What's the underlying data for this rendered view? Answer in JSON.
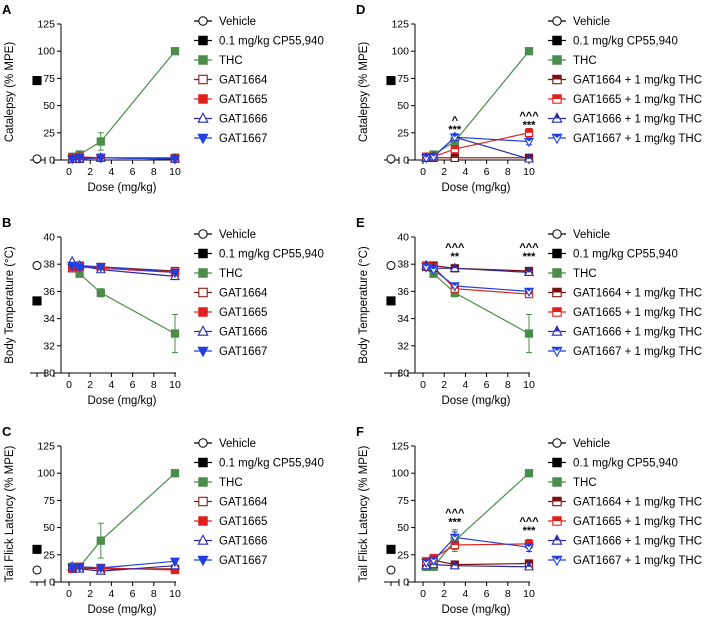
{
  "figure": {
    "styles": {
      "Vehicle": {
        "color": "#000000",
        "marker": "circle",
        "fill": "#ffffff"
      },
      "CP": {
        "color": "#000000",
        "marker": "square",
        "fill": "#000000"
      },
      "THC": {
        "color": "#4a8d4a",
        "marker": "square",
        "fill": "#4a8d4a"
      },
      "GAT1664": {
        "color": "#8b1a1a",
        "marker": "square",
        "fill": "#ffffff"
      },
      "GAT1665": {
        "color": "#e0201c",
        "marker": "square",
        "fill": "#e0201c"
      },
      "GAT1666": {
        "color": "#2a2aa8",
        "marker": "triangle-up",
        "fill": "#ffffff"
      },
      "GAT1667": {
        "color": "#1f3fe0",
        "marker": "triangle-down",
        "fill": "#1f3fe0"
      },
      "GAT1664+THC": {
        "color": "#7a1010",
        "marker": "square",
        "fill": "half"
      },
      "GAT1665+THC": {
        "color": "#e0201c",
        "marker": "square",
        "fill": "half"
      },
      "GAT1666+THC": {
        "color": "#2a2aa8",
        "marker": "triangle-up",
        "fill": "half"
      },
      "GAT1667+THC": {
        "color": "#1f3fe0",
        "marker": "triangle-down",
        "fill": "half"
      }
    }
  },
  "chart_data": [
    {
      "panel": "A",
      "type": "line",
      "xlabel": "Dose (mg/kg)",
      "ylabel": "Catalepsy (% MPE)",
      "ylim": [
        0,
        125
      ],
      "yticks": [
        0,
        25,
        50,
        75,
        100,
        125
      ],
      "xlim": [
        0,
        10
      ],
      "xticks": [
        0,
        2,
        4,
        6,
        8,
        10
      ],
      "controls": [
        {
          "key": "Vehicle",
          "value": 1
        },
        {
          "key": "CP",
          "value": 73
        }
      ],
      "series": [
        {
          "key": "THC",
          "x": [
            0.3,
            1,
            3,
            10
          ],
          "y": [
            3,
            5,
            17,
            100
          ],
          "err": [
            2,
            2,
            8,
            0
          ]
        },
        {
          "key": "GAT1664",
          "x": [
            0.3,
            1,
            3,
            10
          ],
          "y": [
            1,
            1,
            2,
            2
          ],
          "err": [
            0,
            0,
            0,
            0
          ]
        },
        {
          "key": "GAT1665",
          "x": [
            0.3,
            1,
            3,
            10
          ],
          "y": [
            2,
            3,
            2,
            1
          ],
          "err": [
            0,
            0,
            0,
            0
          ]
        },
        {
          "key": "GAT1666",
          "x": [
            0.3,
            1,
            3,
            10
          ],
          "y": [
            1,
            1,
            2,
            1
          ],
          "err": [
            0,
            0,
            0,
            0
          ]
        },
        {
          "key": "GAT1667",
          "x": [
            0.3,
            1,
            3,
            10
          ],
          "y": [
            1,
            2,
            2,
            1
          ],
          "err": [
            0,
            0,
            0,
            0
          ]
        }
      ],
      "legend": [
        {
          "key": "Vehicle",
          "label": "Vehicle"
        },
        {
          "key": "CP",
          "label": "0.1 mg/kg CP55,940"
        },
        {
          "key": "THC",
          "label": "THC"
        },
        {
          "key": "GAT1664",
          "label": "GAT1664"
        },
        {
          "key": "GAT1665",
          "label": "GAT1665"
        },
        {
          "key": "GAT1666",
          "label": "GAT1666"
        },
        {
          "key": "GAT1667",
          "label": "GAT1667"
        }
      ],
      "annotations": []
    },
    {
      "panel": "B",
      "type": "line",
      "xlabel": "Dose (mg/kg)",
      "ylabel": "Body Temperature (°C)",
      "ylim": [
        30,
        40
      ],
      "yticks": [
        30,
        32,
        34,
        36,
        38,
        40
      ],
      "xlim": [
        0,
        10
      ],
      "xticks": [
        0,
        2,
        4,
        6,
        8,
        10
      ],
      "controls": [
        {
          "key": "Vehicle",
          "value": 37.9
        },
        {
          "key": "CP",
          "value": 35.3
        }
      ],
      "series": [
        {
          "key": "THC",
          "x": [
            0.3,
            1,
            3,
            10
          ],
          "y": [
            37.8,
            37.3,
            35.9,
            32.9
          ],
          "err": [
            0.2,
            0.2,
            0.3,
            1.4
          ]
        },
        {
          "key": "GAT1664",
          "x": [
            0.3,
            1,
            3,
            10
          ],
          "y": [
            37.7,
            37.9,
            37.8,
            37.5
          ],
          "err": [
            0,
            0,
            0,
            0
          ]
        },
        {
          "key": "GAT1665",
          "x": [
            0.3,
            1,
            3,
            10
          ],
          "y": [
            37.8,
            37.8,
            37.7,
            37.4
          ],
          "err": [
            0,
            0,
            0,
            0
          ]
        },
        {
          "key": "GAT1666",
          "x": [
            0.3,
            1,
            3,
            10
          ],
          "y": [
            38.2,
            37.9,
            37.6,
            37.1
          ],
          "err": [
            0,
            0,
            0,
            0
          ]
        },
        {
          "key": "GAT1667",
          "x": [
            0.3,
            1,
            3,
            10
          ],
          "y": [
            37.9,
            37.8,
            37.8,
            37.4
          ],
          "err": [
            0,
            0,
            0,
            0
          ]
        }
      ],
      "legend": [
        {
          "key": "Vehicle",
          "label": "Vehicle"
        },
        {
          "key": "CP",
          "label": "0.1 mg/kg CP55,940"
        },
        {
          "key": "THC",
          "label": "THC"
        },
        {
          "key": "GAT1664",
          "label": "GAT1664"
        },
        {
          "key": "GAT1665",
          "label": "GAT1665"
        },
        {
          "key": "GAT1666",
          "label": "GAT1666"
        },
        {
          "key": "GAT1667",
          "label": "GAT1667"
        }
      ],
      "annotations": []
    },
    {
      "panel": "C",
      "type": "line",
      "xlabel": "Dose (mg/kg)",
      "ylabel": "Tail Flick Latency (% MPE)",
      "ylim": [
        0,
        125
      ],
      "yticks": [
        0,
        25,
        50,
        75,
        100,
        125
      ],
      "xlim": [
        0,
        10
      ],
      "xticks": [
        0,
        2,
        4,
        6,
        8,
        10
      ],
      "controls": [
        {
          "key": "Vehicle",
          "value": 11
        },
        {
          "key": "CP",
          "value": 30
        }
      ],
      "series": [
        {
          "key": "THC",
          "x": [
            0.3,
            1,
            3,
            10
          ],
          "y": [
            14,
            14,
            38,
            100
          ],
          "err": [
            2,
            2,
            16,
            0
          ]
        },
        {
          "key": "GAT1664",
          "x": [
            0.3,
            1,
            3,
            10
          ],
          "y": [
            13,
            13,
            12,
            12
          ],
          "err": [
            0,
            0,
            0,
            0
          ]
        },
        {
          "key": "GAT1665",
          "x": [
            0.3,
            1,
            3,
            10
          ],
          "y": [
            12,
            14,
            13,
            11
          ],
          "err": [
            0,
            0,
            0,
            0
          ]
        },
        {
          "key": "GAT1666",
          "x": [
            0.3,
            1,
            3,
            10
          ],
          "y": [
            14,
            12,
            10,
            15
          ],
          "err": [
            0,
            0,
            0,
            0
          ]
        },
        {
          "key": "GAT1667",
          "x": [
            0.3,
            1,
            3,
            10
          ],
          "y": [
            13,
            14,
            13,
            19
          ],
          "err": [
            0,
            0,
            0,
            0
          ]
        }
      ],
      "legend": [
        {
          "key": "Vehicle",
          "label": "Vehicle"
        },
        {
          "key": "CP",
          "label": "0.1 mg/kg CP55,940"
        },
        {
          "key": "THC",
          "label": "THC"
        },
        {
          "key": "GAT1664",
          "label": "GAT1664"
        },
        {
          "key": "GAT1665",
          "label": "GAT1665"
        },
        {
          "key": "GAT1666",
          "label": "GAT1666"
        },
        {
          "key": "GAT1667",
          "label": "GAT1667"
        }
      ],
      "annotations": []
    },
    {
      "panel": "D",
      "type": "line",
      "xlabel": "Dose (mg/kg)",
      "ylabel": "Catalepsy (% MPE)",
      "ylim": [
        0,
        125
      ],
      "yticks": [
        0,
        25,
        50,
        75,
        100,
        125
      ],
      "xlim": [
        0,
        10
      ],
      "xticks": [
        0,
        2,
        4,
        6,
        8,
        10
      ],
      "controls": [
        {
          "key": "Vehicle",
          "value": 1
        },
        {
          "key": "CP",
          "value": 73
        }
      ],
      "series": [
        {
          "key": "THC",
          "x": [
            0.3,
            1,
            3,
            10
          ],
          "y": [
            3,
            5,
            17,
            100
          ],
          "err": [
            2,
            2,
            6,
            0
          ]
        },
        {
          "key": "GAT1664+THC",
          "x": [
            0.3,
            1,
            3,
            10
          ],
          "y": [
            2,
            2,
            2,
            2
          ],
          "err": [
            0,
            0,
            0,
            0
          ]
        },
        {
          "key": "GAT1665+THC",
          "x": [
            0.3,
            1,
            3,
            10
          ],
          "y": [
            3,
            3,
            10,
            25
          ],
          "err": [
            0,
            0,
            4,
            4
          ]
        },
        {
          "key": "GAT1666+THC",
          "x": [
            0.3,
            1,
            3,
            10
          ],
          "y": [
            2,
            3,
            21,
            1
          ],
          "err": [
            0,
            0,
            3,
            0
          ]
        },
        {
          "key": "GAT1667+THC",
          "x": [
            0.3,
            1,
            3,
            10
          ],
          "y": [
            2,
            3,
            21,
            17
          ],
          "err": [
            0,
            0,
            3,
            3
          ]
        }
      ],
      "legend": [
        {
          "key": "Vehicle",
          "label": "Vehicle"
        },
        {
          "key": "CP",
          "label": "0.1 mg/kg CP55,940"
        },
        {
          "key": "THC",
          "label": "THC"
        },
        {
          "key": "GAT1664+THC",
          "label": "GAT1664 + 1 mg/kg THC"
        },
        {
          "key": "GAT1665+THC",
          "label": "GAT1665 + 1 mg/kg THC"
        },
        {
          "key": "GAT1666+THC",
          "label": "GAT1666 + 1 mg/kg THC"
        },
        {
          "key": "GAT1667+THC",
          "label": "GAT1667 + 1 mg/kg THC"
        }
      ],
      "annotations": [
        {
          "x": 3,
          "lines": [
            "^",
            "***"
          ],
          "y": 25
        },
        {
          "x": 10,
          "lines": [
            "^^^",
            "***"
          ],
          "y": 29
        }
      ]
    },
    {
      "panel": "E",
      "type": "line",
      "xlabel": "Dose (mg/kg)",
      "ylabel": "Body Temperature (°C)",
      "ylim": [
        30,
        40
      ],
      "yticks": [
        30,
        32,
        34,
        36,
        38,
        40
      ],
      "xlim": [
        0,
        10
      ],
      "xticks": [
        0,
        2,
        4,
        6,
        8,
        10
      ],
      "controls": [
        {
          "key": "Vehicle",
          "value": 37.9
        },
        {
          "key": "CP",
          "value": 35.3
        }
      ],
      "series": [
        {
          "key": "THC",
          "x": [
            0.3,
            1,
            3,
            10
          ],
          "y": [
            37.9,
            37.3,
            35.9,
            32.9
          ],
          "err": [
            0.2,
            0.2,
            0.3,
            1.4
          ]
        },
        {
          "key": "GAT1664+THC",
          "x": [
            0.3,
            1,
            3,
            10
          ],
          "y": [
            37.8,
            37.9,
            37.7,
            37.5
          ],
          "err": [
            0,
            0,
            0,
            0
          ]
        },
        {
          "key": "GAT1665+THC",
          "x": [
            0.3,
            1,
            3,
            10
          ],
          "y": [
            37.9,
            37.8,
            36.2,
            35.8
          ],
          "err": [
            0,
            0,
            0.2,
            0.2
          ]
        },
        {
          "key": "GAT1666+THC",
          "x": [
            0.3,
            1,
            3,
            10
          ],
          "y": [
            37.9,
            37.7,
            37.7,
            37.4
          ],
          "err": [
            0,
            0,
            0,
            0
          ]
        },
        {
          "key": "GAT1667+THC",
          "x": [
            0.3,
            1,
            3,
            10
          ],
          "y": [
            37.8,
            37.6,
            36.4,
            36.0
          ],
          "err": [
            0,
            0,
            0.2,
            0.2
          ]
        }
      ],
      "legend": [
        {
          "key": "Vehicle",
          "label": "Vehicle"
        },
        {
          "key": "CP",
          "label": "0.1 mg/kg CP55,940"
        },
        {
          "key": "THC",
          "label": "THC"
        },
        {
          "key": "GAT1664+THC",
          "label": "GAT1664 + 1 mg/kg THC"
        },
        {
          "key": "GAT1665+THC",
          "label": "GAT1665 + 1 mg/kg THC"
        },
        {
          "key": "GAT1666+THC",
          "label": "GAT1666 + 1 mg/kg THC"
        },
        {
          "key": "GAT1667+THC",
          "label": "GAT1667 + 1 mg/kg THC"
        }
      ],
      "annotations": [
        {
          "x": 3,
          "lines": [
            "^^^",
            "**"
          ],
          "y": 38.3
        },
        {
          "x": 10,
          "lines": [
            "^^^",
            "***"
          ],
          "y": 38.3
        }
      ]
    },
    {
      "panel": "F",
      "type": "line",
      "xlabel": "Dose (mg/kg)",
      "ylabel": "Tail Flick Latency (% MPE)",
      "ylim": [
        0,
        125
      ],
      "yticks": [
        0,
        25,
        50,
        75,
        100,
        125
      ],
      "xlim": [
        0,
        10
      ],
      "xticks": [
        0,
        2,
        4,
        6,
        8,
        10
      ],
      "controls": [
        {
          "key": "Vehicle",
          "value": 11
        },
        {
          "key": "CP",
          "value": 30
        }
      ],
      "series": [
        {
          "key": "THC",
          "x": [
            0.3,
            1,
            3,
            10
          ],
          "y": [
            14,
            14,
            38,
            100
          ],
          "err": [
            2,
            2,
            10,
            0
          ]
        },
        {
          "key": "GAT1664+THC",
          "x": [
            0.3,
            1,
            3,
            10
          ],
          "y": [
            17,
            20,
            16,
            17
          ],
          "err": [
            2,
            2,
            2,
            2
          ]
        },
        {
          "key": "GAT1665+THC",
          "x": [
            0.3,
            1,
            3,
            10
          ],
          "y": [
            19,
            22,
            34,
            35
          ],
          "err": [
            2,
            2,
            4,
            4
          ]
        },
        {
          "key": "GAT1666+THC",
          "x": [
            0.3,
            1,
            3,
            10
          ],
          "y": [
            15,
            16,
            15,
            14
          ],
          "err": [
            2,
            2,
            2,
            2
          ]
        },
        {
          "key": "GAT1667+THC",
          "x": [
            0.3,
            1,
            3,
            10
          ],
          "y": [
            18,
            20,
            41,
            32
          ],
          "err": [
            2,
            2,
            5,
            4
          ]
        }
      ],
      "legend": [
        {
          "key": "Vehicle",
          "label": "Vehicle"
        },
        {
          "key": "CP",
          "label": "0.1 mg/kg CP55,940"
        },
        {
          "key": "THC",
          "label": "THC"
        },
        {
          "key": "GAT1664+THC",
          "label": "GAT1664 + 1 mg/kg THC"
        },
        {
          "key": "GAT1665+THC",
          "label": "GAT1665 + 1 mg/kg THC"
        },
        {
          "key": "GAT1666+THC",
          "label": "GAT1666 + 1 mg/kg THC"
        },
        {
          "key": "GAT1667+THC",
          "label": "GAT1667 + 1 mg/kg THC"
        }
      ],
      "annotations": [
        {
          "x": 3,
          "lines": [
            "^^^",
            "***"
          ],
          "y": 52
        },
        {
          "x": 10,
          "lines": [
            "^^^",
            "***"
          ],
          "y": 44
        }
      ]
    }
  ]
}
